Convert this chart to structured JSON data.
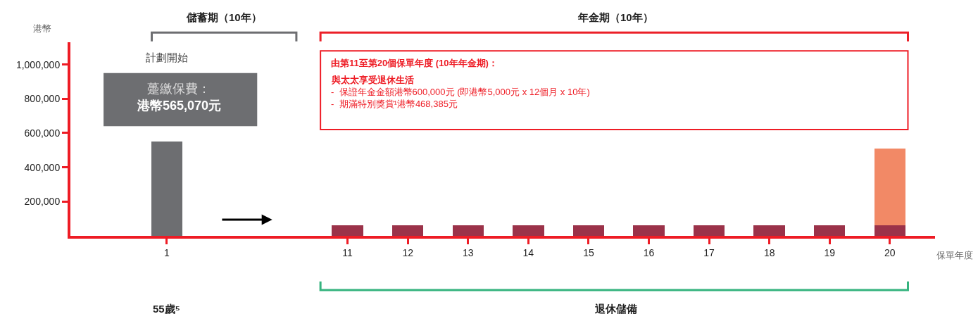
{
  "chart_data": {
    "type": "bar",
    "stacked": true,
    "categories": [
      "1",
      null,
      null,
      "11",
      "12",
      "13",
      "14",
      "15",
      "16",
      "17",
      "18",
      "19",
      "20"
    ],
    "series": [
      {
        "color": "#6d6e71",
        "values": [
          550000,
          null,
          null,
          null,
          null,
          null,
          null,
          null,
          null,
          null,
          null,
          null,
          null
        ]
      },
      {
        "color": "#9b3249",
        "values": [
          null,
          null,
          null,
          60000,
          60000,
          60000,
          60000,
          60000,
          60000,
          60000,
          60000,
          60000,
          60000
        ]
      },
      {
        "color": "#f28966",
        "values": [
          null,
          null,
          null,
          null,
          null,
          null,
          null,
          null,
          null,
          null,
          null,
          null,
          450000
        ]
      }
    ],
    "ylim": [
      0,
      1130000
    ],
    "yticks": [
      {
        "value": 200000,
        "label": "200,000"
      },
      {
        "value": 400000,
        "label": "400,000"
      },
      {
        "value": 600000,
        "label": "600,000"
      },
      {
        "value": 800000,
        "label": "800,000"
      },
      {
        "value": 1000000,
        "label": "1,000,000"
      }
    ],
    "xlabel": "保單年度",
    "ylabel": "港幣",
    "annotations": [
      "儲蓄期（10年）",
      "年金期（10年）",
      "計劃開始",
      "躉繳保費：",
      "港幣565,070元",
      "由第11至第20個保單年度 (10年年金期)：",
      "與太太享受退休生活",
      "-  保證年金金額港幣600,000元 (即港幣5,000元 x 12個月 x 10年)",
      "-  期滿特別獎賞¹港幣468,385元",
      "55歲⁵",
      "退休儲備"
    ]
  }
}
